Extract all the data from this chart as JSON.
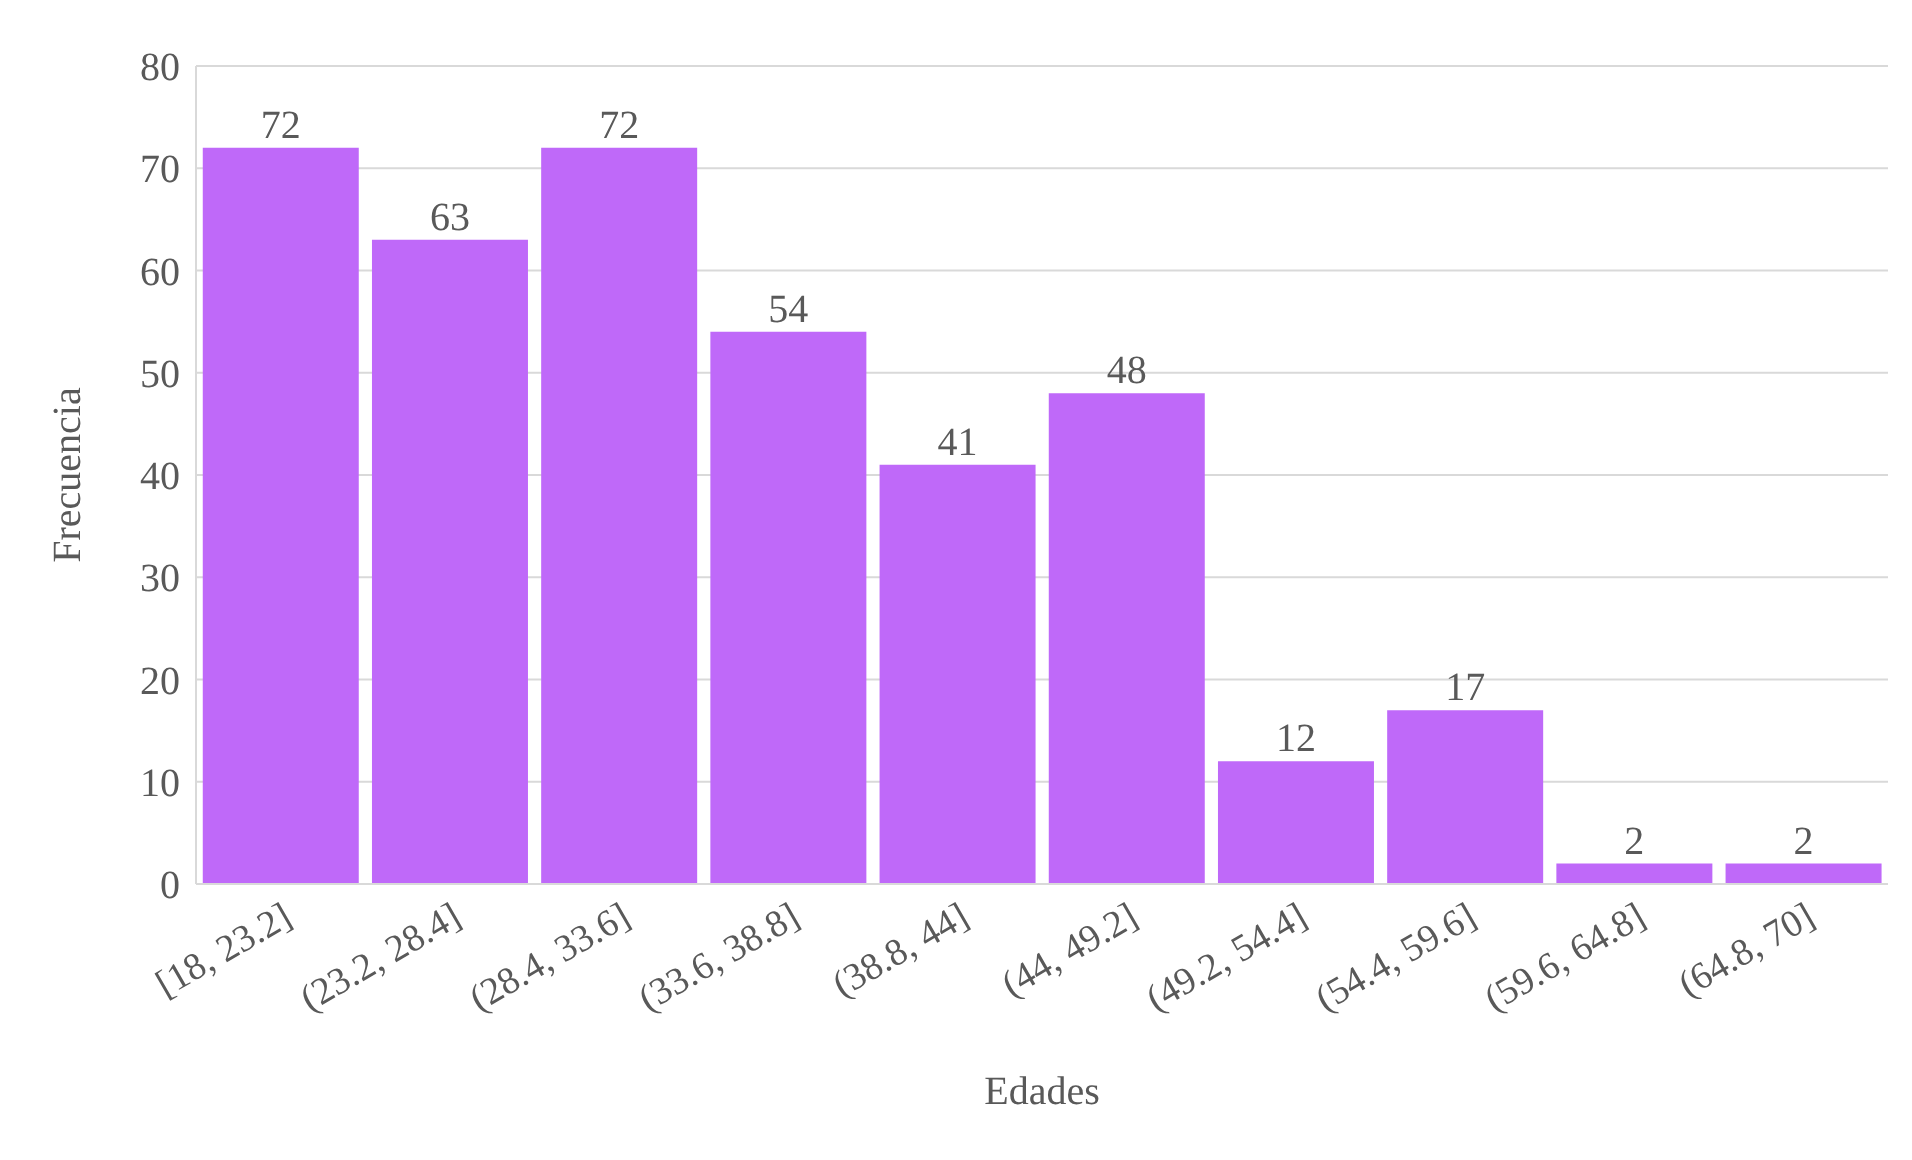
{
  "chart_data": {
    "type": "bar",
    "xlabel": "Edades",
    "ylabel": "Frecuencia",
    "categories": [
      "[18, 23.2]",
      "(23.2, 28.4]",
      "(28.4, 33.6]",
      "(33.6, 38.8]",
      "(38.8, 44]",
      "(44, 49.2]",
      "(49.2, 54.4]",
      "(54.4, 59.6]",
      "(59.6, 64.8]",
      "(64.8, 70]"
    ],
    "values": [
      72,
      63,
      72,
      54,
      41,
      48,
      12,
      17,
      2,
      2
    ],
    "color": "#bf69f9",
    "ylim": [
      0,
      80
    ],
    "yticks": [
      0,
      10,
      20,
      30,
      40,
      50,
      60,
      70,
      80
    ],
    "grid": "y",
    "data_labels": true
  }
}
